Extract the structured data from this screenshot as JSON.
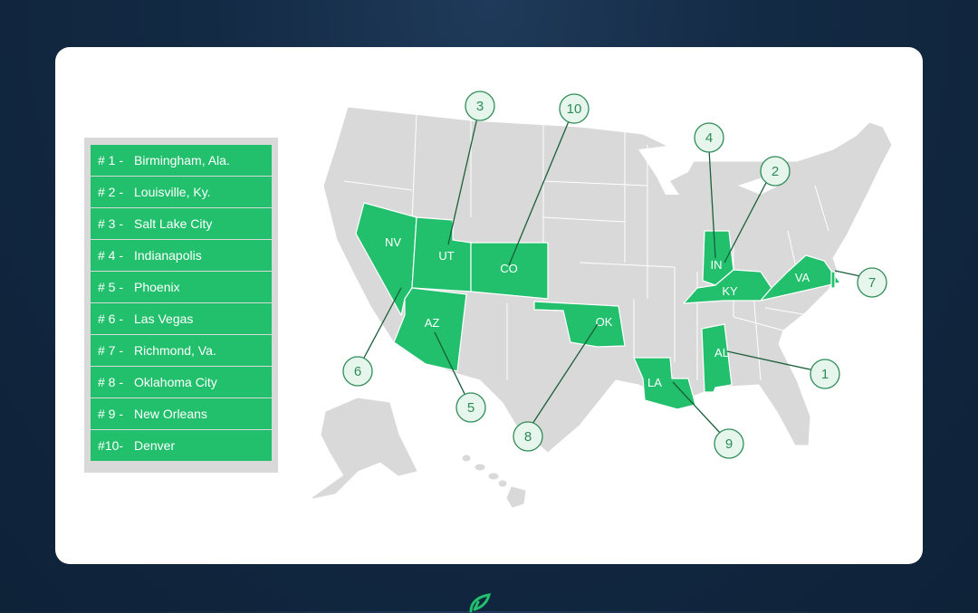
{
  "ranking": [
    {
      "rank": "# 1 -",
      "city": "Birmingham, Ala."
    },
    {
      "rank": "# 2 -",
      "city": "Louisville, Ky."
    },
    {
      "rank": "# 3 -",
      "city": "Salt Lake City"
    },
    {
      "rank": "# 4 -",
      "city": "Indianapolis"
    },
    {
      "rank": "# 5 -",
      "city": "Phoenix"
    },
    {
      "rank": "# 6 -",
      "city": "Las Vegas"
    },
    {
      "rank": "# 7 -",
      "city": "Richmond, Va."
    },
    {
      "rank": "# 8 -",
      "city": "Oklahoma City"
    },
    {
      "rank": "# 9 -",
      "city": "New Orleans"
    },
    {
      "rank": "#10-",
      "city": "Denver"
    }
  ],
  "states": {
    "nv": "NV",
    "ut": "UT",
    "co": "CO",
    "az": "AZ",
    "ok": "OK",
    "la": "LA",
    "al": "AL",
    "in": "IN",
    "ky": "KY",
    "va": "VA"
  },
  "markers": [
    "1",
    "2",
    "3",
    "4",
    "5",
    "6",
    "7",
    "8",
    "9",
    "10"
  ],
  "colors": {
    "highlight": "#22bf6c",
    "land": "#d9d9d9",
    "marker_fill": "#e6f6ec",
    "marker_stroke": "#2e8b57",
    "background": "#132a44",
    "card": "#ffffff"
  }
}
